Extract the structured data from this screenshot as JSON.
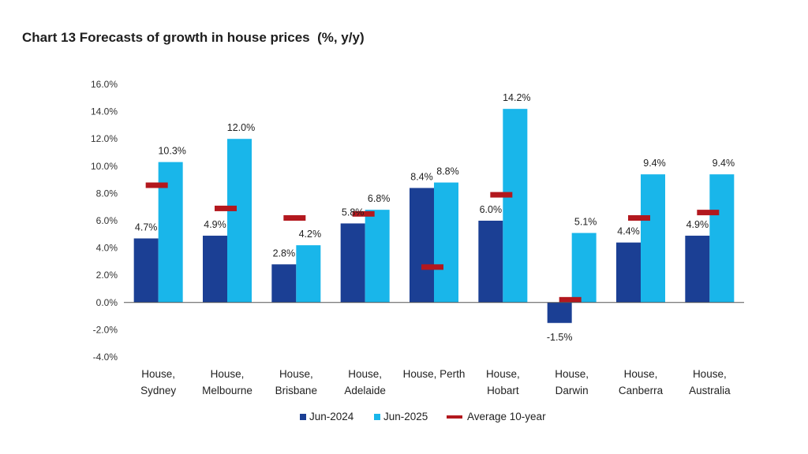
{
  "chart_data": {
    "type": "bar",
    "title": "Chart 13 Forecasts of growth in house prices  (%, y/y)",
    "categories": [
      [
        "House,",
        "Sydney"
      ],
      [
        "House,",
        "Melbourne"
      ],
      [
        "House,",
        "Brisbane"
      ],
      [
        "House,",
        "Adelaide"
      ],
      [
        "House, Perth"
      ],
      [
        "House,",
        "Hobart"
      ],
      [
        "House,",
        "Darwin"
      ],
      [
        "House,",
        "Canberra"
      ],
      [
        "House,",
        "Australia"
      ]
    ],
    "series": [
      {
        "name": "Jun-2024",
        "type": "bar",
        "color": "#1b3f94",
        "values": [
          4.7,
          4.9,
          2.8,
          5.8,
          8.4,
          6.0,
          -1.5,
          4.4,
          4.9
        ],
        "labels": [
          "4.7%",
          "4.9%",
          "2.8%",
          "5.8%",
          "8.4%",
          "6.0%",
          "-1.5%",
          "4.4%",
          "4.9%"
        ]
      },
      {
        "name": "Jun-2025",
        "type": "bar",
        "color": "#19b6ea",
        "values": [
          10.3,
          12.0,
          4.2,
          6.8,
          8.8,
          14.2,
          5.1,
          9.4,
          9.4
        ],
        "labels": [
          "10.3%",
          "12.0%",
          "4.2%",
          "6.8%",
          "8.8%",
          "14.2%",
          "5.1%",
          "9.4%",
          "9.4%"
        ]
      },
      {
        "name": "Average 10-year",
        "type": "marker",
        "color": "#b3181e",
        "values": [
          8.6,
          6.9,
          6.2,
          6.5,
          2.6,
          7.9,
          0.2,
          6.2,
          6.6
        ]
      }
    ],
    "y_ticks": [
      "16.0%",
      "14.0%",
      "12.0%",
      "10.0%",
      "8.0%",
      "6.0%",
      "4.0%",
      "2.0%",
      "0.0%",
      "-2.0%",
      "-4.0%"
    ],
    "ylim": [
      -4,
      16
    ],
    "xlabel": "",
    "ylabel": "",
    "grid": false,
    "legend_position": "bottom"
  }
}
